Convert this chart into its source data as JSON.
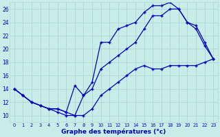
{
  "title": "Graphe des températures (°c)",
  "bg_color": "#c8ece8",
  "grid_color": "#b0d8d4",
  "line_color": "#0000bb",
  "xlim": [
    -0.5,
    23.5
  ],
  "ylim": [
    9,
    27
  ],
  "xticks": [
    0,
    1,
    2,
    3,
    4,
    5,
    6,
    7,
    8,
    9,
    10,
    11,
    12,
    13,
    14,
    15,
    16,
    17,
    18,
    19,
    20,
    21,
    22,
    23
  ],
  "yticks": [
    10,
    12,
    14,
    16,
    18,
    20,
    22,
    24,
    26
  ],
  "curve_top_x": [
    0,
    1,
    2,
    3,
    4,
    5,
    6,
    7,
    8,
    9,
    10,
    11,
    12,
    13,
    14,
    15,
    16,
    17,
    18,
    19,
    20,
    21,
    22,
    23
  ],
  "curve_top_y": [
    14,
    13,
    12,
    11.5,
    11,
    11,
    10.5,
    14.5,
    13,
    15,
    21,
    21,
    23,
    23.5,
    24,
    25.5,
    26.5,
    26.5,
    27,
    26,
    24,
    23,
    20.5,
    18.5
  ],
  "curve_mid_x": [
    0,
    1,
    2,
    3,
    4,
    5,
    6,
    7,
    8,
    9,
    10,
    11,
    12,
    13,
    14,
    15,
    16,
    17,
    18,
    19,
    20,
    21,
    22,
    23
  ],
  "curve_mid_y": [
    14,
    13,
    12,
    11.5,
    11,
    11,
    10.5,
    10,
    13,
    14,
    17,
    18,
    19,
    20,
    21,
    23,
    25,
    25,
    26,
    26,
    24,
    23.5,
    21,
    18.5
  ],
  "curve_bot_x": [
    0,
    1,
    2,
    3,
    4,
    5,
    6,
    7,
    8,
    9,
    10,
    11,
    12,
    13,
    14,
    15,
    16,
    17,
    18,
    19,
    20,
    21,
    22,
    23
  ],
  "curve_bot_y": [
    14,
    13,
    12,
    11.5,
    11,
    10.5,
    10,
    10,
    10,
    11,
    13,
    14,
    15,
    16,
    17,
    17.5,
    17,
    17,
    17.5,
    17.5,
    17.5,
    17.5,
    18,
    18.5
  ]
}
